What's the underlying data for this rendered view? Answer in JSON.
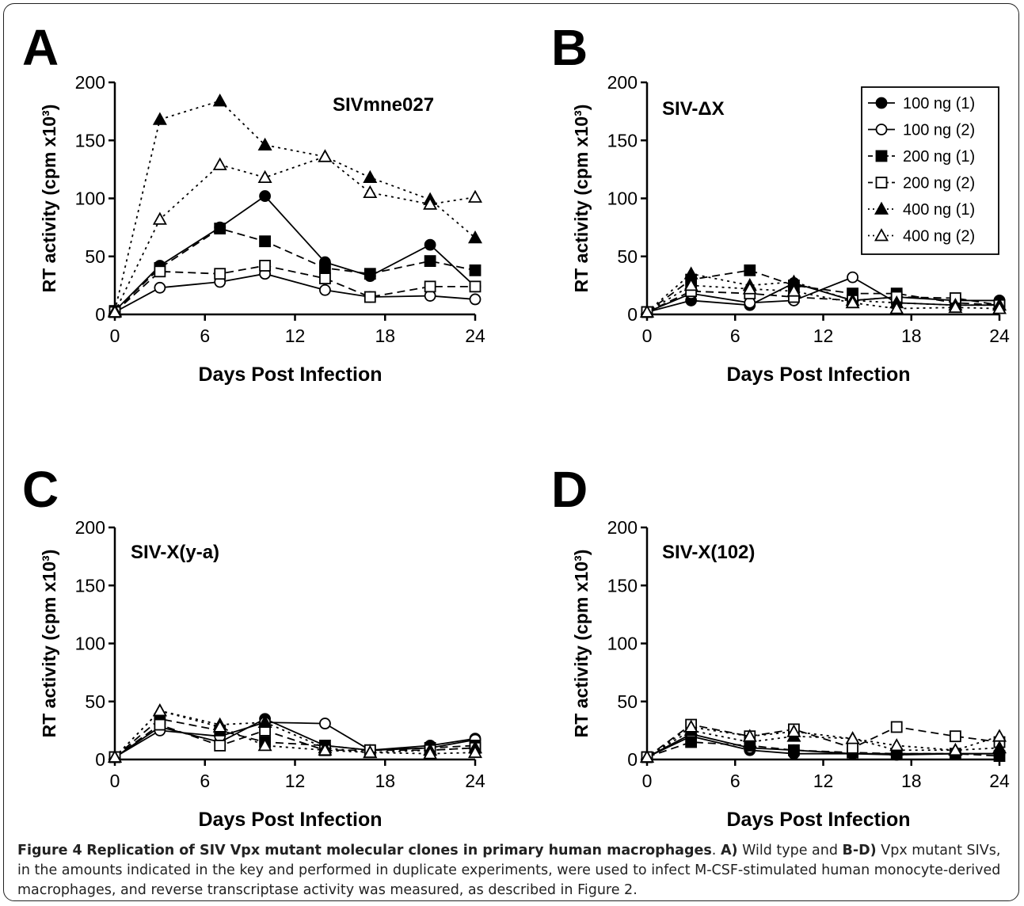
{
  "figure": {
    "caption": {
      "label": "Figure 4",
      "title": "Replication of SIV Vpx mutant molecular clones in primary human macrophages",
      "part_a_label": "A)",
      "part_a_text": "Wild type and",
      "part_bd_label": "B-D)",
      "part_bd_text": "Vpx mutant SIVs, in the amounts indicated in the key and performed in duplicate experiments, were used to infect M-CSF-stimulated human monocyte-derived macrophages, and reverse transcriptase activity was measured, as described in Figure 2."
    }
  },
  "chart_data": [
    {
      "type": "line",
      "panel_letter": "A",
      "title": "SIVmne027",
      "xlabel": "Days Post Infection",
      "ylabel": "RT activity (cpm x10³)",
      "xlim": [
        0,
        24
      ],
      "ylim": [
        0,
        200
      ],
      "xticks": [
        0,
        6,
        12,
        18,
        24
      ],
      "yticks": [
        0,
        50,
        100,
        150,
        200
      ],
      "x": [
        0,
        3,
        7,
        10,
        14,
        17,
        21,
        24
      ],
      "series": [
        {
          "name": "100 ng (1)",
          "values": [
            3,
            42,
            75,
            102,
            45,
            33,
            60,
            24
          ]
        },
        {
          "name": "100 ng (2)",
          "values": [
            2,
            23,
            28,
            35,
            21,
            15,
            16,
            13
          ]
        },
        {
          "name": "200 ng (1)",
          "values": [
            3,
            40,
            74,
            63,
            40,
            35,
            46,
            38
          ]
        },
        {
          "name": "200 ng (2)",
          "values": [
            2,
            37,
            35,
            42,
            31,
            15,
            24,
            24
          ]
        },
        {
          "name": "400 ng (1)",
          "values": [
            3,
            168,
            184,
            146,
            136,
            118,
            99,
            66
          ]
        },
        {
          "name": "400 ng (2)",
          "values": [
            2,
            82,
            129,
            118,
            136,
            105,
            95,
            101
          ]
        }
      ],
      "legend": "none"
    },
    {
      "type": "line",
      "panel_letter": "B",
      "title": "SIV-ΔX",
      "xlabel": "Days Post Infection",
      "ylabel": "RT activity (cpm x10³)",
      "xlim": [
        0,
        24
      ],
      "ylim": [
        0,
        200
      ],
      "xticks": [
        0,
        6,
        12,
        18,
        24
      ],
      "yticks": [
        0,
        50,
        100,
        150,
        200
      ],
      "x": [
        0,
        3,
        7,
        10,
        14,
        17,
        21,
        24
      ],
      "series": [
        {
          "name": "100 ng (1)",
          "values": [
            2,
            12,
            8,
            27,
            12,
            15,
            12,
            12
          ]
        },
        {
          "name": "100 ng (2)",
          "values": [
            2,
            18,
            10,
            12,
            32,
            10,
            8,
            8
          ]
        },
        {
          "name": "200 ng (1)",
          "values": [
            2,
            30,
            38,
            25,
            18,
            18,
            10,
            8
          ]
        },
        {
          "name": "200 ng (2)",
          "values": [
            2,
            20,
            18,
            15,
            12,
            15,
            14,
            8
          ]
        },
        {
          "name": "400 ng (1)",
          "values": [
            2,
            35,
            25,
            28,
            12,
            10,
            8,
            8
          ]
        },
        {
          "name": "400 ng (2)",
          "values": [
            2,
            25,
            22,
            20,
            10,
            5,
            6,
            5
          ]
        }
      ],
      "legend": "top-right"
    },
    {
      "type": "line",
      "panel_letter": "C",
      "title": "SIV-X(y-a)",
      "xlabel": "Days Post Infection",
      "ylabel": "RT activity (cpm x10³)",
      "xlim": [
        0,
        24
      ],
      "ylim": [
        0,
        200
      ],
      "xticks": [
        0,
        6,
        12,
        18,
        24
      ],
      "yticks": [
        0,
        50,
        100,
        150,
        200
      ],
      "x": [
        0,
        3,
        7,
        10,
        14,
        17,
        21,
        24
      ],
      "series": [
        {
          "name": "100 ng (1)",
          "values": [
            2,
            28,
            15,
            35,
            12,
            8,
            12,
            18
          ]
        },
        {
          "name": "100 ng (2)",
          "values": [
            2,
            25,
            20,
            32,
            31,
            8,
            10,
            17
          ]
        },
        {
          "name": "200 ng (1)",
          "values": [
            2,
            35,
            25,
            15,
            12,
            8,
            10,
            12
          ]
        },
        {
          "name": "200 ng (2)",
          "values": [
            2,
            30,
            12,
            25,
            8,
            8,
            8,
            10
          ]
        },
        {
          "name": "400 ng (1)",
          "values": [
            2,
            42,
            30,
            32,
            10,
            6,
            8,
            10
          ]
        },
        {
          "name": "400 ng (2)",
          "values": [
            2,
            42,
            28,
            12,
            8,
            6,
            5,
            6
          ]
        }
      ],
      "legend": "none"
    },
    {
      "type": "line",
      "panel_letter": "D",
      "title": "SIV-X(102)",
      "xlabel": "Days Post Infection",
      "ylabel": "RT activity (cpm x10³)",
      "xlim": [
        0,
        24
      ],
      "ylim": [
        0,
        200
      ],
      "xticks": [
        0,
        6,
        12,
        18,
        24
      ],
      "yticks": [
        0,
        50,
        100,
        150,
        200
      ],
      "x": [
        0,
        3,
        7,
        10,
        14,
        17,
        21,
        24
      ],
      "series": [
        {
          "name": "100 ng (1)",
          "values": [
            2,
            20,
            8,
            5,
            5,
            4,
            5,
            5
          ]
        },
        {
          "name": "100 ng (2)",
          "values": [
            2,
            22,
            10,
            8,
            5,
            5,
            5,
            5
          ]
        },
        {
          "name": "200 ng (1)",
          "values": [
            2,
            15,
            12,
            8,
            6,
            5,
            5,
            3
          ]
        },
        {
          "name": "200 ng (2)",
          "values": [
            2,
            30,
            20,
            26,
            10,
            28,
            20,
            15
          ]
        },
        {
          "name": "400 ng (1)",
          "values": [
            2,
            25,
            15,
            20,
            18,
            8,
            8,
            10
          ]
        },
        {
          "name": "400 ng (2)",
          "values": [
            2,
            28,
            20,
            24,
            18,
            12,
            8,
            20
          ]
        }
      ],
      "legend": "none"
    }
  ],
  "series_styles": [
    {
      "marker": "circle",
      "fill": "#000000",
      "dash": "none"
    },
    {
      "marker": "circle",
      "fill": "#ffffff",
      "dash": "none"
    },
    {
      "marker": "square",
      "fill": "#000000",
      "dash": "long"
    },
    {
      "marker": "square",
      "fill": "#ffffff",
      "dash": "long"
    },
    {
      "marker": "triangle",
      "fill": "#000000",
      "dash": "dot"
    },
    {
      "marker": "triangle",
      "fill": "#ffffff",
      "dash": "dot"
    }
  ]
}
